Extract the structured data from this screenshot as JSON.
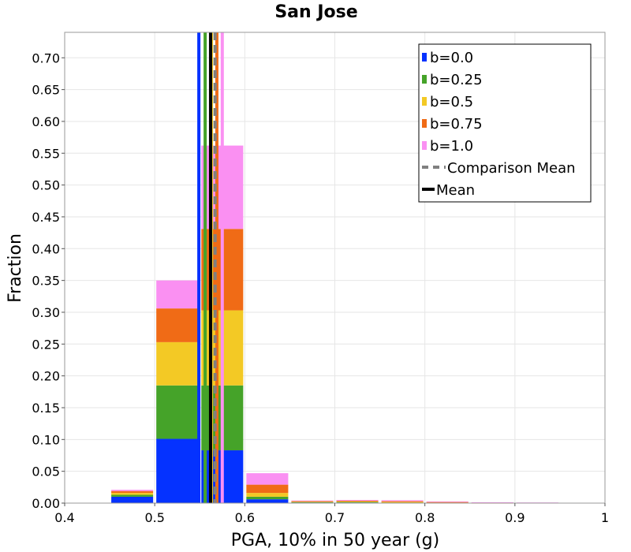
{
  "chart_data": {
    "type": "bar",
    "stacked": true,
    "title": "San Jose",
    "xlabel": "PGA, 10% in 50 year (g)",
    "ylabel": "Fraction",
    "xlim": [
      0.4,
      1.0
    ],
    "ylim": [
      0.0,
      0.74
    ],
    "grid": true,
    "legend_position": "top-right",
    "x_ticks": [
      "0.4",
      "0.5",
      "0.6",
      "0.7",
      "0.8",
      "0.9",
      "1"
    ],
    "y_ticks": [
      "0.00",
      "0.05",
      "0.10",
      "0.15",
      "0.20",
      "0.25",
      "0.30",
      "0.35",
      "0.40",
      "0.45",
      "0.50",
      "0.55",
      "0.60",
      "0.65",
      "0.70"
    ],
    "bin_width": 0.05,
    "bin_left_edges": [
      0.4,
      0.45,
      0.5,
      0.55,
      0.6,
      0.65,
      0.7,
      0.75,
      0.8,
      0.85,
      0.9,
      0.95
    ],
    "series": [
      {
        "name": "b=0.0",
        "color": "#0532ff",
        "values": [
          0.0,
          0.01,
          0.101,
          0.083,
          0.006,
          0.001,
          0.001,
          0.0005,
          0.0,
          0.0,
          0.0,
          0.0
        ]
      },
      {
        "name": "b=0.25",
        "color": "#45a329",
        "values": [
          0.0,
          0.003,
          0.084,
          0.102,
          0.004,
          0.0008,
          0.0008,
          0.0005,
          0.0005,
          0.0,
          0.0,
          0.0
        ]
      },
      {
        "name": "b=0.5",
        "color": "#f3c925",
        "values": [
          0.0,
          0.003,
          0.068,
          0.118,
          0.006,
          0.0006,
          0.0008,
          0.0008,
          0.0005,
          0.0003,
          0.0,
          0.0
        ]
      },
      {
        "name": "b=0.75",
        "color": "#f06b16",
        "values": [
          0.0,
          0.003,
          0.053,
          0.128,
          0.013,
          0.0008,
          0.0012,
          0.0012,
          0.0008,
          0.0005,
          0.0005,
          0.0
        ]
      },
      {
        "name": "b=1.0",
        "color": "#fa90f2",
        "values": [
          0.0,
          0.002,
          0.044,
          0.131,
          0.018,
          0.0008,
          0.0012,
          0.0015,
          0.0008,
          0.0005,
          0.0005,
          0.0
        ]
      }
    ],
    "vertical_lines": [
      {
        "name": "b=0.0",
        "x": 0.549,
        "color": "#0532ff",
        "style": "solid"
      },
      {
        "name": "b=0.25",
        "x": 0.556,
        "color": "#45a329",
        "style": "solid"
      },
      {
        "name": "b=0.5",
        "x": 0.563,
        "color": "#f3c925",
        "style": "solid"
      },
      {
        "name": "b=0.75",
        "x": 0.569,
        "color": "#f06b16",
        "style": "solid"
      },
      {
        "name": "b=1.0",
        "x": 0.575,
        "color": "#fa90f2",
        "style": "solid"
      },
      {
        "name": "Comparison Mean",
        "x": 0.567,
        "color": "#808080",
        "style": "dashed"
      },
      {
        "name": "Mean",
        "x": 0.562,
        "color": "#000000",
        "style": "solid"
      }
    ],
    "legend": [
      {
        "label": "b=0.0",
        "color": "#0532ff",
        "kind": "box"
      },
      {
        "label": "b=0.25",
        "color": "#45a329",
        "kind": "box"
      },
      {
        "label": "b=0.5",
        "color": "#f3c925",
        "kind": "box"
      },
      {
        "label": "b=0.75",
        "color": "#f06b16",
        "kind": "box"
      },
      {
        "label": "b=1.0",
        "color": "#fa90f2",
        "kind": "box"
      },
      {
        "label": "Comparison Mean",
        "color": "#808080",
        "kind": "dashed"
      },
      {
        "label": "Mean",
        "color": "#000000",
        "kind": "line"
      }
    ]
  }
}
